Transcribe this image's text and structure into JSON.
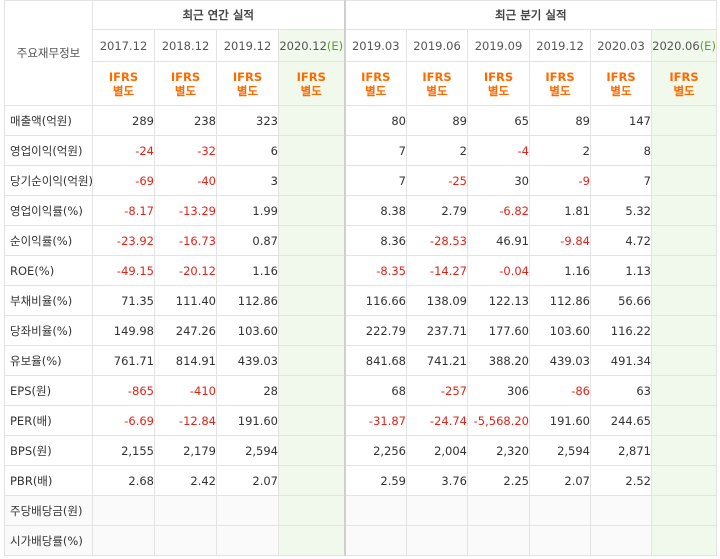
{
  "table": {
    "corner_label": "주요재무정보",
    "group_annual": "최근 연간 실적",
    "group_quarterly": "최근 분기 실적",
    "periods": [
      {
        "label": "2017.12",
        "est": ""
      },
      {
        "label": "2018.12",
        "est": ""
      },
      {
        "label": "2019.12",
        "est": ""
      },
      {
        "label": "2020.12",
        "est": "(E)"
      },
      {
        "label": "2019.03",
        "est": ""
      },
      {
        "label": "2019.06",
        "est": ""
      },
      {
        "label": "2019.09",
        "est": ""
      },
      {
        "label": "2019.12",
        "est": ""
      },
      {
        "label": "2020.03",
        "est": ""
      },
      {
        "label": "2020.06",
        "est": "(E)"
      }
    ],
    "ifrs_line1": "IFRS",
    "ifrs_line2": "별도",
    "rows": [
      {
        "label": "매출액(억원)",
        "values": [
          "289",
          "238",
          "323",
          "",
          "80",
          "89",
          "65",
          "89",
          "147",
          ""
        ]
      },
      {
        "label": "영업이익(억원)",
        "values": [
          "-24",
          "-32",
          "6",
          "",
          "7",
          "2",
          "-4",
          "2",
          "8",
          ""
        ]
      },
      {
        "label": "당기순이익(억원)",
        "values": [
          "-69",
          "-40",
          "3",
          "",
          "7",
          "-25",
          "30",
          "-9",
          "7",
          ""
        ]
      },
      {
        "label": "영업이익률(%)",
        "values": [
          "-8.17",
          "-13.29",
          "1.99",
          "",
          "8.38",
          "2.79",
          "-6.82",
          "1.81",
          "5.32",
          ""
        ]
      },
      {
        "label": "순이익률(%)",
        "values": [
          "-23.92",
          "-16.73",
          "0.87",
          "",
          "8.36",
          "-28.53",
          "46.91",
          "-9.84",
          "4.72",
          ""
        ]
      },
      {
        "label": "ROE(%)",
        "values": [
          "-49.15",
          "-20.12",
          "1.16",
          "",
          "-8.35",
          "-14.27",
          "-0.04",
          "1.16",
          "1.13",
          ""
        ]
      },
      {
        "label": "부채비율(%)",
        "values": [
          "71.35",
          "111.40",
          "112.86",
          "",
          "116.66",
          "138.09",
          "122.13",
          "112.86",
          "56.66",
          ""
        ]
      },
      {
        "label": "당좌비율(%)",
        "values": [
          "149.98",
          "247.26",
          "103.60",
          "",
          "222.79",
          "237.71",
          "177.60",
          "103.60",
          "116.22",
          ""
        ]
      },
      {
        "label": "유보율(%)",
        "values": [
          "761.71",
          "814.91",
          "439.03",
          "",
          "841.68",
          "741.21",
          "388.20",
          "439.03",
          "491.34",
          ""
        ]
      },
      {
        "label": "EPS(원)",
        "values": [
          "-865",
          "-410",
          "28",
          "",
          "68",
          "-257",
          "306",
          "-86",
          "63",
          ""
        ]
      },
      {
        "label": "PER(배)",
        "values": [
          "-6.69",
          "-12.84",
          "191.60",
          "",
          "-31.87",
          "-24.74",
          "-5,568.20",
          "191.60",
          "244.65",
          ""
        ]
      },
      {
        "label": "BPS(원)",
        "values": [
          "2,155",
          "2,179",
          "2,594",
          "",
          "2,256",
          "2,004",
          "2,320",
          "2,594",
          "2,871",
          ""
        ]
      },
      {
        "label": "PBR(배)",
        "values": [
          "2.68",
          "2.42",
          "2.07",
          "",
          "2.59",
          "3.76",
          "2.25",
          "2.07",
          "2.52",
          ""
        ]
      },
      {
        "label": "주당배당금(원)",
        "values": [
          "",
          "",
          "",
          "",
          "",
          "",
          "",
          "",
          "",
          ""
        ]
      },
      {
        "label": "시가배당률(%)",
        "values": [
          "",
          "",
          "",
          "",
          "",
          "",
          "",
          "",
          "",
          ""
        ]
      }
    ],
    "colors": {
      "negative": "#e0231a",
      "ifrs": "#ff6a00",
      "estimate_bg": "#f1f8ec",
      "estimate_tag": "#5aa03a",
      "border": "#e3e3e3"
    }
  }
}
